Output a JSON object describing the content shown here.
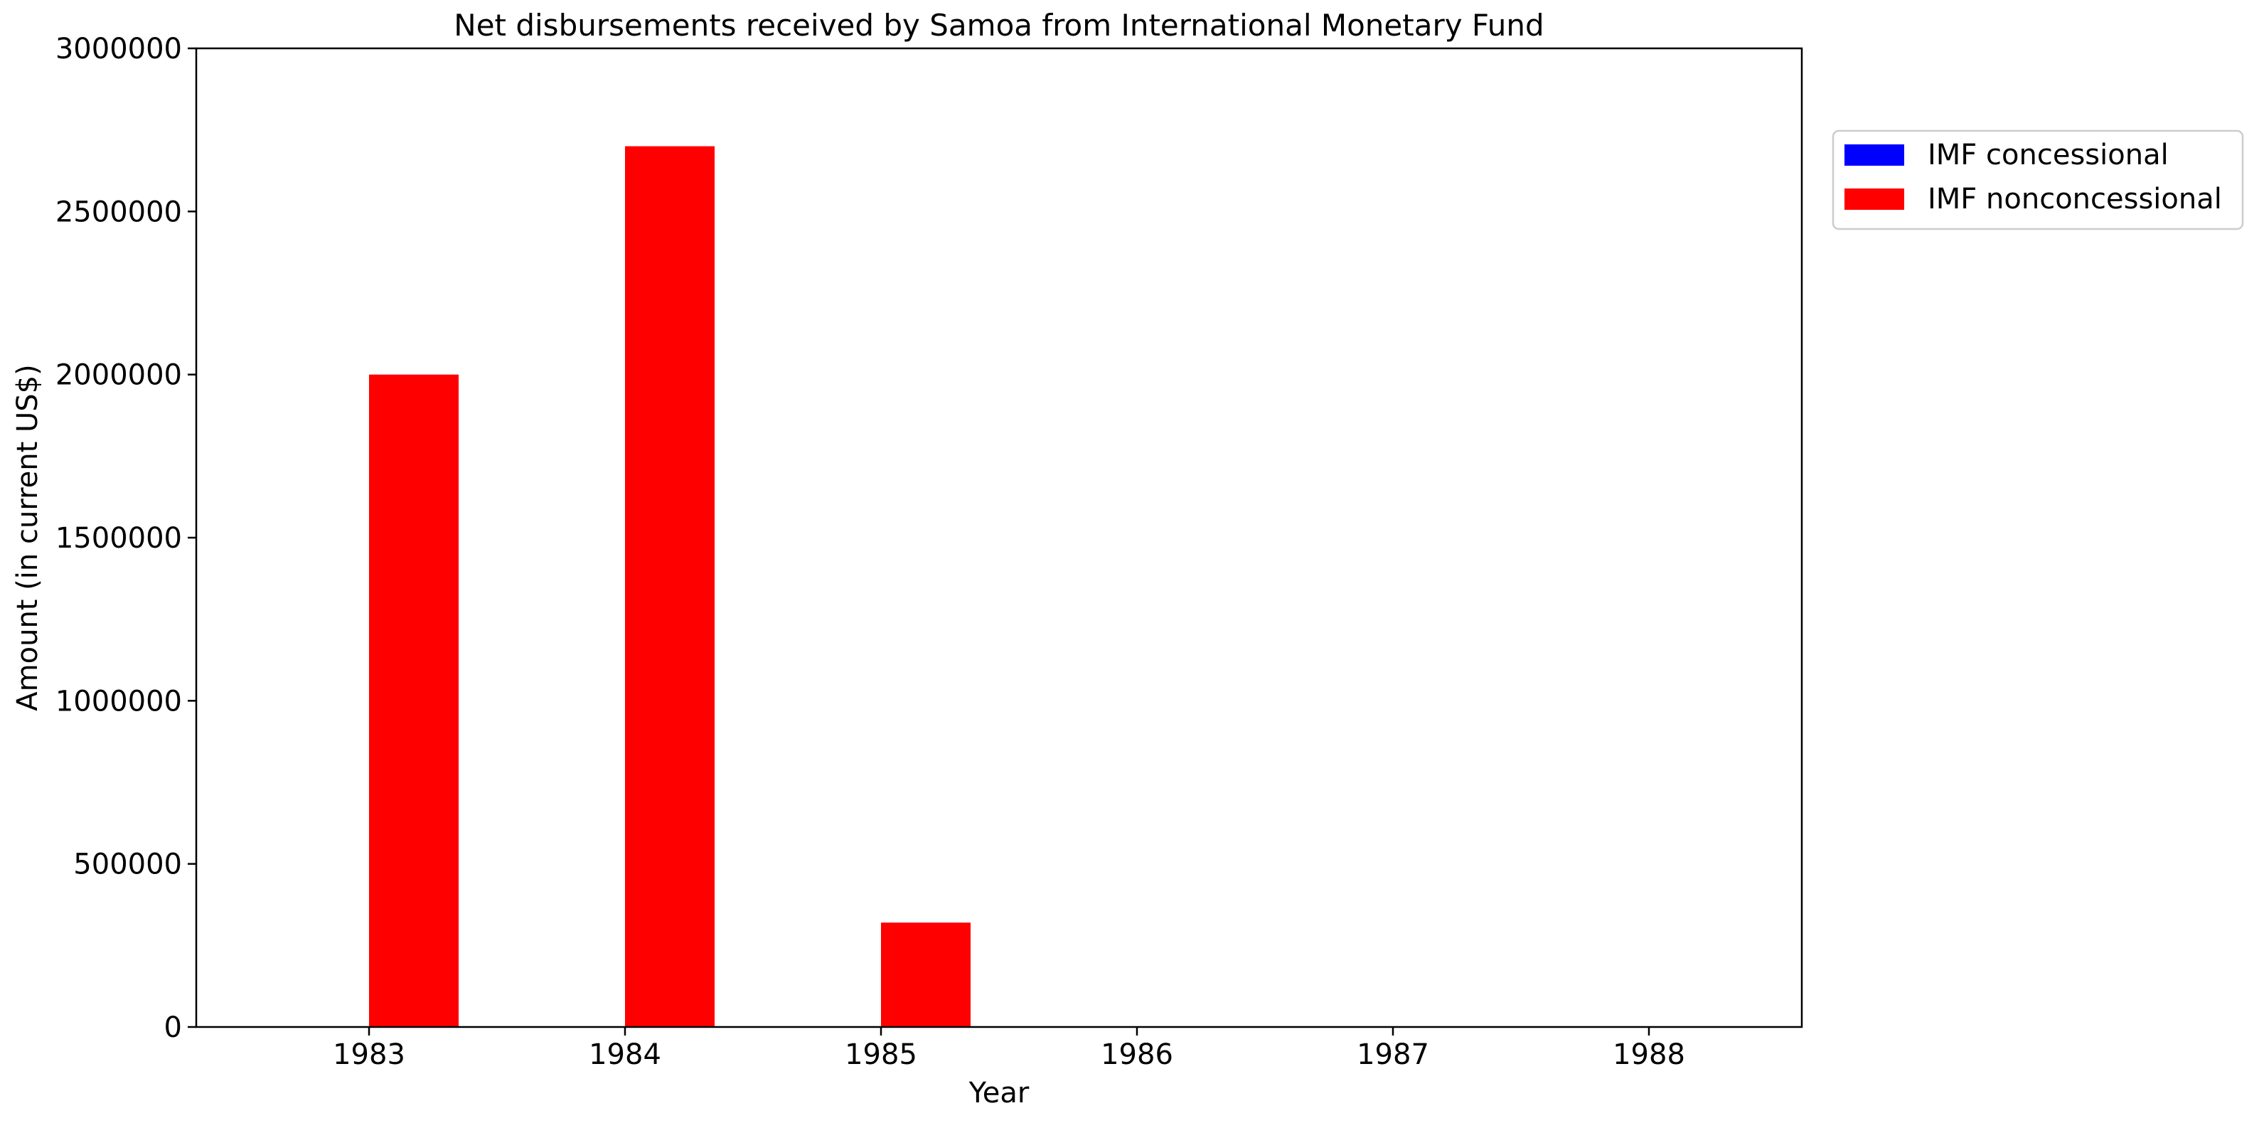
{
  "chart_data": {
    "type": "bar",
    "title": "Net disbursements received by Samoa from International Monetary Fund",
    "xlabel": "Year",
    "ylabel": "Amount (in current US$)",
    "categories": [
      "1983",
      "1984",
      "1985",
      "1986",
      "1987",
      "1988"
    ],
    "series": [
      {
        "name": "IMF concessional",
        "color": "#0000ff",
        "values": [
          0,
          0,
          0,
          0,
          0,
          0
        ]
      },
      {
        "name": "IMF nonconcessional",
        "color": "#ff0000",
        "values": [
          2000000,
          2700000,
          320000,
          0,
          0,
          0
        ]
      }
    ],
    "ylim": [
      0,
      3000000
    ],
    "yticks": [
      "0",
      "500000",
      "1000000",
      "1500000",
      "2000000",
      "2500000",
      "3000000"
    ],
    "grid": false,
    "legend_position": "outside right, top"
  }
}
